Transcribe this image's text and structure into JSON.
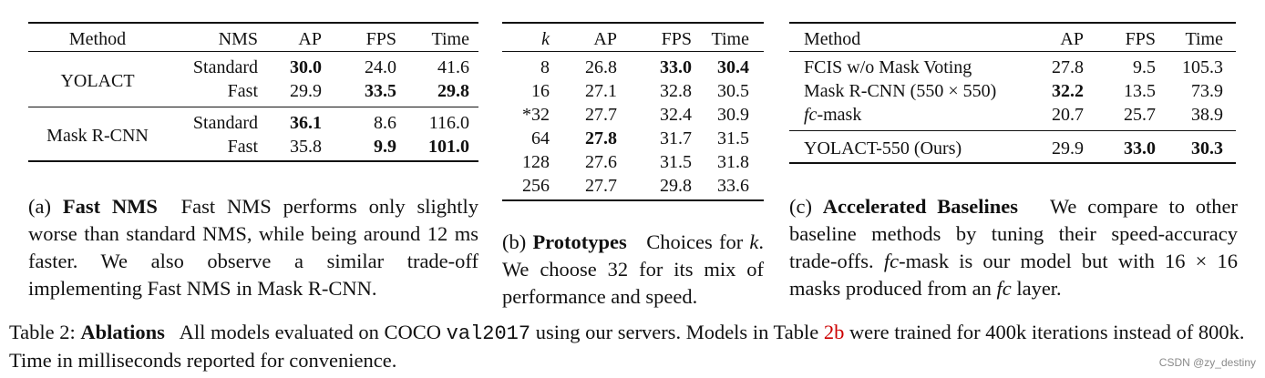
{
  "table_a": {
    "headers": [
      "Method",
      "NMS",
      "AP",
      "FPS",
      "Time"
    ],
    "groups": [
      {
        "method": "YOLACT",
        "rows": [
          {
            "nms": "Standard",
            "ap": "30.0",
            "fps": "24.0",
            "time": "41.6"
          },
          {
            "nms": "Fast",
            "ap": "29.9",
            "fps": "33.5",
            "time": "29.8"
          }
        ]
      },
      {
        "method": "Mask R-CNN",
        "rows": [
          {
            "nms": "Standard",
            "ap": "36.1",
            "fps": "8.6",
            "time": "116.0"
          },
          {
            "nms": "Fast",
            "ap": "35.8",
            "fps": "9.9",
            "time": "101.0"
          }
        ]
      }
    ],
    "caption_prefix": "(a)",
    "caption_label": "Fast NMS",
    "caption_text": "Fast NMS performs only slightly worse than standard NMS, while being around 12 ms faster. We also observe a similar trade-off implementing Fast NMS in Mask R-CNN."
  },
  "table_b": {
    "headers": [
      "k",
      "AP",
      "FPS",
      "Time"
    ],
    "rows": [
      {
        "k": "8",
        "ap": "26.8",
        "fps": "33.0",
        "time": "30.4"
      },
      {
        "k": "16",
        "ap": "27.1",
        "fps": "32.8",
        "time": "30.5"
      },
      {
        "k": "*32",
        "ap": "27.7",
        "fps": "32.4",
        "time": "30.9"
      },
      {
        "k": "64",
        "ap": "27.8",
        "fps": "31.7",
        "time": "31.5"
      },
      {
        "k": "128",
        "ap": "27.6",
        "fps": "31.5",
        "time": "31.8"
      },
      {
        "k": "256",
        "ap": "27.7",
        "fps": "29.8",
        "time": "33.6"
      }
    ],
    "caption_prefix": "(b)",
    "caption_label": "Prototypes",
    "caption_text_1": "Choices for",
    "caption_k": "k",
    "caption_text_2": ". We choose 32 for its mix of performance and speed."
  },
  "table_c": {
    "headers": [
      "Method",
      "AP",
      "FPS",
      "Time"
    ],
    "rows": [
      {
        "method": "FCIS w/o Mask Voting",
        "ap": "27.8",
        "fps": "9.5",
        "time": "105.3"
      },
      {
        "method": "Mask R-CNN (550 × 550)",
        "ap": "32.2",
        "fps": "13.5",
        "time": "73.9"
      },
      {
        "method_it": "fc",
        "method_rest": "-mask",
        "ap": "20.7",
        "fps": "25.7",
        "time": "38.9"
      }
    ],
    "ours": {
      "method": "YOLACT-550 (Ours)",
      "ap": "29.9",
      "fps": "33.0",
      "time": "30.3"
    },
    "caption_prefix": "(c)",
    "caption_label": "Accelerated Baselines",
    "caption_text_1": "We compare to other baseline methods by tuning their speed-accuracy trade-offs.",
    "caption_fc1": "fc",
    "caption_text_2": "-mask is our model but with 16 × 16 masks produced from an",
    "caption_fc2": "fc",
    "caption_text_3": "layer."
  },
  "footer": {
    "prefix": "Table 2:",
    "label": "Ablations",
    "text_1": "All models evaluated on COCO",
    "mono": "val2017",
    "text_2": "using our servers. Models in Table",
    "ref": "2b",
    "text_3": "were trained for 400k iterations instead of 800k. Time in milliseconds reported for convenience."
  },
  "watermark": "CSDN @zy_destiny"
}
